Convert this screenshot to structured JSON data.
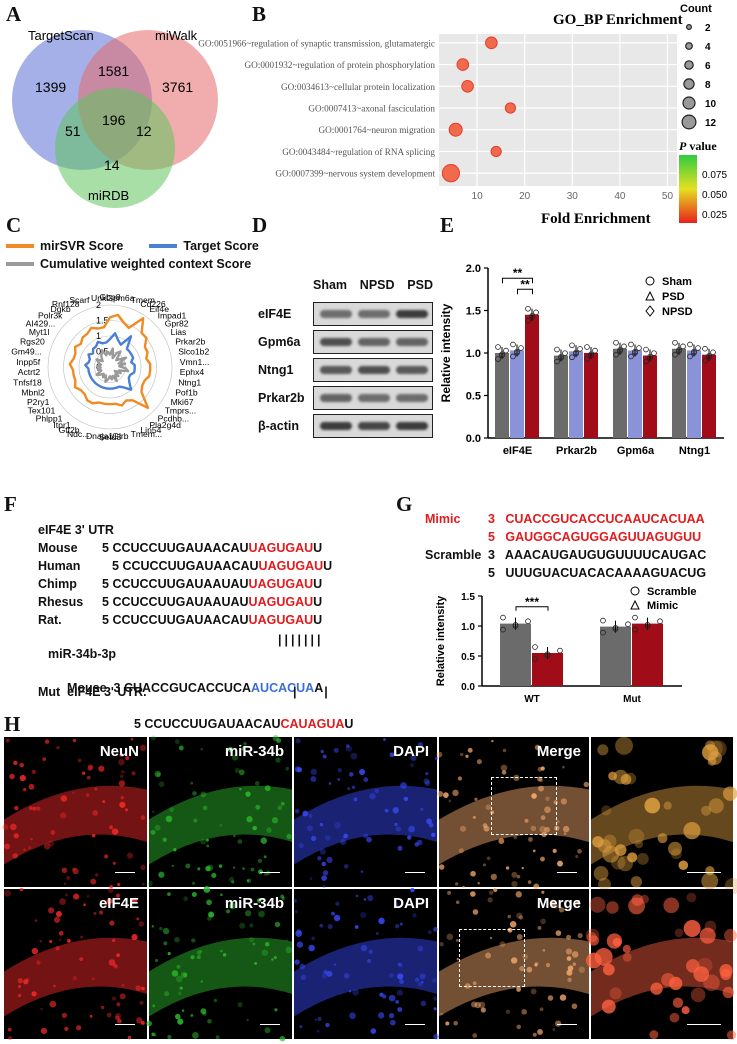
{
  "panels": {
    "A": "A",
    "B": "B",
    "C": "C",
    "D": "D",
    "E": "E",
    "F": "F",
    "G": "G",
    "H": "H"
  },
  "venn": {
    "sets": [
      "TargetScan",
      "miWalk",
      "miRDB"
    ],
    "colors": [
      "#5b6fd6",
      "#e66a6a",
      "#5fc45f"
    ],
    "regions": {
      "ts_only": "1399",
      "mw_only": "3761",
      "ts_mw": "1581",
      "center": "196",
      "ts_db": "51",
      "mw_db": "12",
      "db_only": "14"
    }
  },
  "go_bp": {
    "title": "GO_BP Enrichment",
    "xlabel": "Fold Enrichment",
    "count_label": "Count",
    "count_ticks": [
      "2",
      "4",
      "6",
      "8",
      "10",
      "12"
    ],
    "count_values": [
      2,
      4,
      6,
      8,
      10,
      12
    ],
    "pval_label_italic": "P",
    "pval_label_rest": " value",
    "pval_ticks": [
      "0.075",
      "0.050",
      "0.025"
    ],
    "x_ticks": [
      "10",
      "20",
      "30",
      "40",
      "50"
    ],
    "x_range": [
      2,
      52
    ],
    "terms": [
      {
        "label": "GO:0051966~regulation of synaptic transmission, glutamatergic",
        "fold": 13,
        "count": 4
      },
      {
        "label": "GO:0001932~regulation of protein phosphorylation",
        "fold": 7,
        "count": 4
      },
      {
        "label": "GO:0034613~cellular protein localization",
        "fold": 8,
        "count": 4
      },
      {
        "label": "GO:0007413~axonal fasciculation",
        "fold": 17,
        "count": 3
      },
      {
        "label": "GO:0001764~neuron migration",
        "fold": 5.5,
        "count": 5
      },
      {
        "label": "GO:0043484~regulation of RNA splicing",
        "fold": 14,
        "count": 3
      },
      {
        "label": "GO:0007399~nervous system development",
        "fold": 4.5,
        "count": 8
      }
    ]
  },
  "radar": {
    "legend": [
      "mirSVR Score",
      "Target Score",
      "Cumulative weighted context Score"
    ],
    "colors": [
      "#f08a24",
      "#4a7fd4",
      "#9a9a9a"
    ],
    "ring_labels": [
      "0",
      "0.5",
      "1",
      "1.5",
      "2"
    ],
    "genes": [
      "Gbp8",
      "Gpm6a",
      "Tmem",
      "Cd226",
      "Eif4e",
      "Impad1",
      "Gpr82",
      "Lias",
      "Prkar2b",
      "Slco1b2",
      "Vmn1...",
      "Ephx4",
      "Ntng1",
      "Pof1b",
      "Mki67",
      "Tmprs...",
      "Pcdhb...",
      "Pla2g4d",
      "Lin54",
      "Tmem...",
      "Glrb",
      "Setd3",
      "Dnaja1",
      "Ndc...",
      "Gtf2b",
      "Itpr1",
      "Phlpp1",
      "Tex101",
      "P2ry1",
      "Mbnl2",
      "Tnfsf18",
      "Actrt2",
      "Inpp5f",
      "Gm49...",
      "Rgs20",
      "Myt1l",
      "AI429...",
      "Polr3k",
      "Dgkb",
      "Rnf128",
      "Scarf",
      "Unkl"
    ],
    "mirsvr": [
      1.6,
      1.7,
      1.5,
      1.4,
      1.9,
      1.5,
      1.5,
      1.3,
      1.3,
      1.2,
      1.3,
      1.3,
      1.3,
      1.2,
      1.2,
      1.3,
      1.8,
      1.3,
      1.2,
      1.3,
      1.2,
      1.2,
      1.2,
      1.2,
      1.3,
      1.3,
      1.2,
      1.2,
      1.3,
      1.2,
      1.2,
      1.2,
      1.3,
      1.2,
      1.2,
      1.3,
      1.2,
      1.3,
      1.3,
      1.4,
      1.3,
      1.3
    ],
    "target": [
      0.9,
      1.1,
      0.9,
      0.8,
      1.2,
      0.8,
      0.8,
      0.8,
      0.8,
      0.7,
      0.8,
      0.8,
      0.8,
      0.7,
      0.7,
      0.8,
      1.0,
      0.8,
      0.7,
      0.7,
      0.7,
      0.7,
      0.7,
      0.7,
      0.7,
      0.7,
      0.7,
      0.7,
      0.7,
      0.7,
      0.7,
      0.7,
      0.8,
      0.7,
      0.7,
      0.8,
      0.7,
      0.8,
      0.8,
      0.9,
      0.8,
      0.8
    ],
    "cumulative": [
      0.4,
      0.6,
      0.3,
      0.5,
      0.6,
      0.3,
      0.4,
      0.6,
      0.3,
      0.5,
      0.3,
      0.5,
      0.6,
      0.3,
      0.4,
      0.2,
      0.4,
      0.3,
      0.5,
      0.3,
      0.4,
      0.3,
      0.4,
      0.5,
      0.3,
      0.4,
      0.3,
      0.4,
      0.5,
      0.3,
      0.4,
      0.3,
      0.4,
      0.3,
      0.4,
      0.5,
      0.3,
      0.4,
      0.5,
      0.6,
      0.4,
      0.5
    ]
  },
  "western": {
    "lanes": [
      "Sham",
      "NPSD",
      "PSD"
    ],
    "bands": [
      "eIF4E",
      "Gpm6a",
      "Ntng1",
      "Prkar2b",
      "β-actin"
    ]
  },
  "bar_e": {
    "ylabel": "Relative intensity",
    "y_ticks": [
      "0.0",
      "0.5",
      "1.0",
      "1.5",
      "2.0"
    ],
    "ylim": [
      0,
      2
    ],
    "groups": [
      "eIF4E",
      "Prkar2b",
      "Gpm6a",
      "Ntng1"
    ],
    "legend": [
      "Sham",
      "PSD",
      "NPSD"
    ],
    "colors": [
      "#6b6b6b",
      "#8a92d8",
      "#a00d18"
    ],
    "values": [
      [
        1.0,
        1.03,
        1.45
      ],
      [
        0.97,
        1.02,
        1.0
      ],
      [
        1.05,
        1.03,
        0.97
      ],
      [
        1.05,
        1.03,
        0.98
      ]
    ],
    "sig_label": "**"
  },
  "seq_f": {
    "title": "eIF4E 3' UTR",
    "rows": [
      {
        "species": "Mouse",
        "num": "5",
        "pre": "CCUCCUUGAUAACAU",
        "red": "UAGUGAU",
        "post": "U"
      },
      {
        "species": "Human",
        "num": "5",
        "pre": "CCUCCUUGAUAACAU",
        "red": "UAGUGAU",
        "post": "U"
      },
      {
        "species": "Chimp",
        "num": "5",
        "pre": "CCUCCUUGAUAAUAU",
        "red": "UAGUGAU",
        "post": "U"
      },
      {
        "species": "Rhesus",
        "num": "5",
        "pre": "CCUCCUUGAUAAUAU",
        "red": "UAGUGAU",
        "post": "U"
      },
      {
        "species": "Rat.",
        "num": "5",
        "pre": "CCUCCUUGAUAACAU",
        "red": "UAGUGAU",
        "post": "U"
      }
    ],
    "bars_line": "|||||||",
    "mirna": "miR-34b-3p",
    "mir_row": {
      "species": "Mouse",
      "num": "3",
      "pre": "CUACCGUCACCUCA",
      "blue": "AUCACUA",
      "post": "A"
    },
    "mut_label": "Mut  eIF4E 3' UTR.",
    "mut_bars": "|        |",
    "mut_row": {
      "num": "5",
      "pre": "CCUCCUUGAUAACAU",
      "red": "CAUAGUA",
      "post": "U"
    }
  },
  "seq_g": {
    "mimic_label": "Mimic",
    "mimic_row1": {
      "num": "3",
      "seq": "CUACCGUCACCUCAAUCACUAA"
    },
    "mimic_row2": {
      "num": "5",
      "seq": "GAUGGCAGUGGAGUUAGUGUU"
    },
    "scramble_label": "Scramble",
    "scramble_row1": {
      "num": "3",
      "seq": "AAACAUGAUGUGUUUUCAUGAC"
    },
    "scramble_row2": {
      "num": "5",
      "seq": "UUUGUACUACACAAAAGUACUG"
    }
  },
  "bar_g": {
    "ylabel": "Relative intensity",
    "y_ticks": [
      "0.0",
      "0.5",
      "1.0",
      "1.5"
    ],
    "ylim": [
      0,
      1.5
    ],
    "groups": [
      "WT",
      "Mut"
    ],
    "legend": [
      "Scramble",
      "Mimic"
    ],
    "colors": [
      "#6b6b6b",
      "#a00d18"
    ],
    "values": [
      [
        1.04,
        0.55
      ],
      [
        0.99,
        1.04
      ]
    ],
    "sig_label": "***"
  },
  "micro": {
    "row1": [
      "NeuN",
      "miR-34b",
      "DAPI",
      "Merge"
    ],
    "row2": [
      "eIF4E",
      "miR-34b",
      "DAPI",
      "Merge"
    ]
  }
}
